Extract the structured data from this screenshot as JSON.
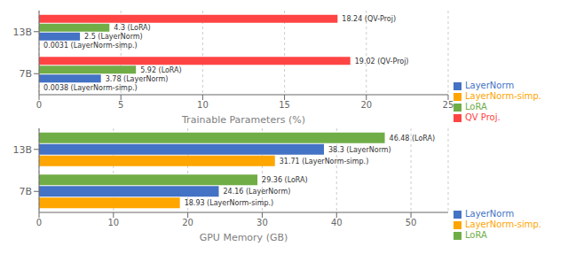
{
  "chart_data": [
    {
      "type": "bar",
      "orientation": "horizontal",
      "x_label": "Trainable Parameters (%)",
      "categories": [
        "13B",
        "7B"
      ],
      "series": [
        {
          "name": "QV Proj.",
          "color": "#FF4444",
          "values": [
            18.24,
            19.02
          ],
          "value_labels": [
            "18.24 (QV-Proj)",
            "19.02 (QV-Proj)"
          ]
        },
        {
          "name": "LoRA",
          "color": "#70AD47",
          "values": [
            4.3,
            5.92
          ],
          "value_labels": [
            "4.3 (LoRA)",
            "5.92 (LoRA)"
          ]
        },
        {
          "name": "LayerNorm",
          "color": "#4472C4",
          "values": [
            2.5,
            3.78
          ],
          "value_labels": [
            "2.5 (LayerNorm)",
            "3.78 (LayerNorm)"
          ]
        },
        {
          "name": "LayerNorm-simp.",
          "color": "#FFA500",
          "values": [
            0.0031,
            0.0038
          ],
          "value_labels": [
            "0.0031 (LayerNorm-simp.)",
            "0.0038 (LayerNorm-simp.)"
          ]
        }
      ],
      "xlim": [
        0,
        25
      ],
      "xticks": [
        0,
        5,
        10,
        15,
        20,
        25
      ],
      "grid": true,
      "legend": "lower right",
      "data_labels": true
    },
    {
      "type": "bar",
      "orientation": "horizontal",
      "x_label": "GPU Memory (GB)",
      "categories": [
        "13B",
        "7B"
      ],
      "series": [
        {
          "name": "LoRA",
          "color": "#70AD47",
          "values": [
            46.48,
            29.36
          ],
          "value_labels": [
            "46.48 (LoRA)",
            "29.36 (LoRA)"
          ]
        },
        {
          "name": "LayerNorm",
          "color": "#4472C4",
          "values": [
            38.3,
            24.16
          ],
          "value_labels": [
            "38.3 (LayerNorm)",
            "24.16 (LayerNorm)"
          ]
        },
        {
          "name": "LayerNorm-simp.",
          "color": "#FFA500",
          "values": [
            31.71,
            18.93
          ],
          "value_labels": [
            "31.71 (LayerNorm-simp.)",
            "18.93 (LayerNorm-simp.)"
          ]
        }
      ],
      "xlim": [
        0,
        55
      ],
      "xticks": [
        0,
        10,
        20,
        30,
        40,
        50
      ],
      "grid": true,
      "legend": "lower right",
      "data_labels": true
    }
  ]
}
